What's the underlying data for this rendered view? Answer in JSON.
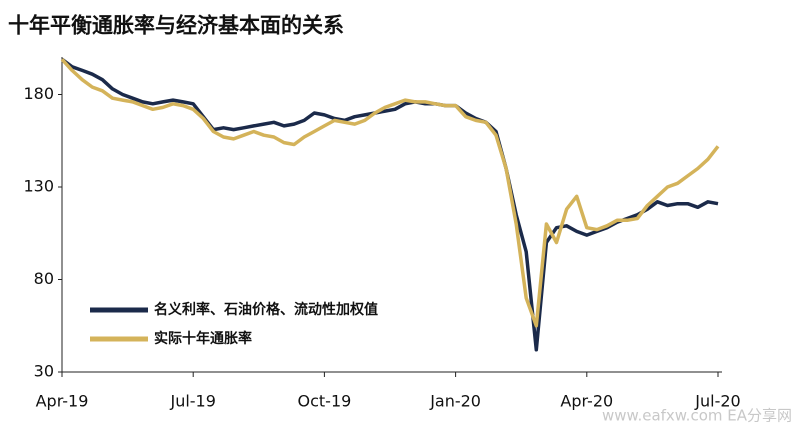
{
  "chart_data": {
    "type": "line",
    "title": "十年平衡通胀率与经济基本面的关系",
    "watermark": "www.eafxw.com  EA分享网",
    "categories": [
      "Apr-19",
      null,
      null,
      null,
      null,
      null,
      null,
      null,
      null,
      null,
      null,
      null,
      null,
      "Jul-19",
      null,
      null,
      null,
      null,
      null,
      null,
      null,
      null,
      null,
      null,
      null,
      null,
      "Oct-19",
      null,
      null,
      null,
      null,
      null,
      null,
      null,
      null,
      null,
      null,
      null,
      null,
      "Jan-20",
      null,
      null,
      null,
      null,
      null,
      null,
      null,
      null,
      null,
      null,
      null,
      null,
      "Apr-20",
      null,
      null,
      null,
      null,
      null,
      null,
      null,
      null,
      null,
      null,
      null,
      null,
      "Jul-20"
    ],
    "series": [
      {
        "name": "名义利率、石油价格、流动性加权值",
        "color": "#1b2a4a",
        "values": [
          199,
          195,
          193,
          191,
          188,
          183,
          180,
          178,
          176,
          175,
          176,
          177,
          176,
          175,
          168,
          161,
          162,
          161,
          162,
          163,
          164,
          165,
          163,
          164,
          166,
          170,
          169,
          167,
          166,
          168,
          169,
          170,
          171,
          172,
          175,
          176,
          175,
          175,
          174,
          174,
          170,
          167,
          165,
          160,
          140,
          115,
          95,
          42,
          100,
          108,
          109,
          106,
          104,
          106,
          108,
          111,
          113,
          115,
          118,
          122,
          120,
          121,
          121,
          119,
          122,
          121
        ]
      },
      {
        "name": "实际十年通胀率",
        "color": "#d4b35a",
        "values": [
          199,
          193,
          188,
          184,
          182,
          178,
          177,
          176,
          174,
          172,
          173,
          175,
          174,
          172,
          167,
          160,
          157,
          156,
          158,
          160,
          158,
          157,
          154,
          153,
          157,
          160,
          163,
          166,
          165,
          164,
          166,
          170,
          173,
          175,
          177,
          176,
          176,
          175,
          174,
          174,
          168,
          166,
          165,
          158,
          140,
          110,
          70,
          55,
          110,
          100,
          118,
          125,
          108,
          107,
          109,
          112,
          112,
          113,
          120,
          125,
          130,
          132,
          136,
          140,
          145,
          152
        ]
      }
    ],
    "ylim": [
      30,
      200
    ],
    "yticks": [
      30,
      80,
      130,
      180
    ],
    "legend": "lower-left"
  }
}
